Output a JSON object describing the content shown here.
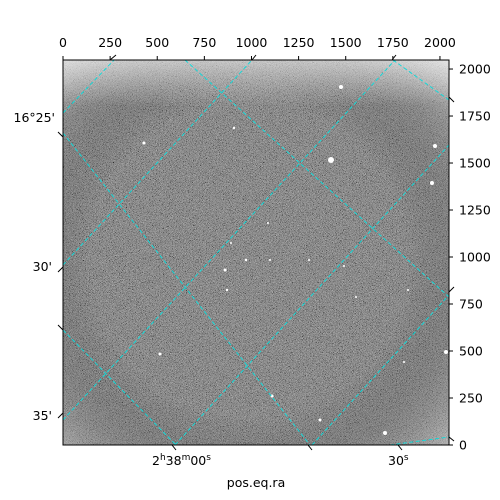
{
  "chart_data": {
    "type": "heatmap",
    "title": "",
    "xlabel": "pos.eq.ra",
    "ylabel": "",
    "pixel_axes": {
      "x_range": [
        0,
        2048
      ],
      "y_range": [
        0,
        2048
      ],
      "bottom_ticks": [
        0,
        250,
        500,
        750,
        1000,
        1250,
        1500,
        1750,
        2000
      ],
      "bottom_tick_labels": [
        "0",
        "250",
        "500",
        "750",
        "1000",
        "1250",
        "1500",
        "1750",
        "2000"
      ],
      "right_ticks": [
        0,
        250,
        500,
        750,
        1000,
        1250,
        1500,
        1750,
        2000
      ],
      "right_tick_labels": [
        "0",
        "250",
        "500",
        "750",
        "1000",
        "1250",
        "1500",
        "1750",
        "2000"
      ]
    },
    "world_axes": {
      "ra_tick_labels": [
        {
          "parts": [
            "2",
            "h",
            "38",
            "m",
            "00",
            "s"
          ]
        },
        {
          "parts": [
            "30",
            "s"
          ]
        }
      ],
      "dec_tick_labels": [
        "16°25'",
        "30'",
        "35'"
      ]
    },
    "grid": true,
    "grid_color": "#13d9d9",
    "colormap": "gray",
    "image_description": "noisy gray astronomical CCD frame with scattered point sources and brighter edges"
  }
}
